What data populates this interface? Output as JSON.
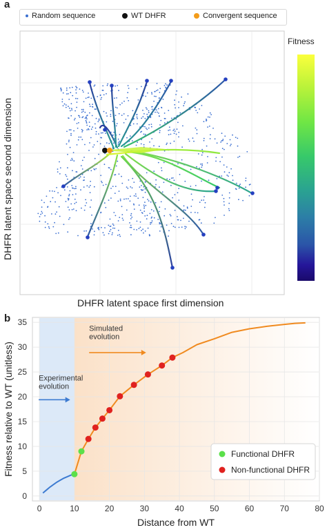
{
  "panel_a": {
    "letter": "a",
    "legend": [
      {
        "label": "Random sequence",
        "color": "#3a6fd1"
      },
      {
        "label": "WT DHFR",
        "color": "#111111"
      },
      {
        "label": "Convergent sequence",
        "color": "#f39c1a"
      }
    ],
    "colorbar_label": "Fitness",
    "xlabel": "DHFR latent space first dimension",
    "ylabel": "DHFR latent space second dimension"
  },
  "panel_b": {
    "letter": "b",
    "annotation_simulated": [
      "Simulated",
      "evolution"
    ],
    "annotation_experimental": [
      "Experimental",
      "evolution"
    ],
    "legend": [
      {
        "label": "Functional DHFR",
        "color": "#5be04a"
      },
      {
        "label": "Non-functional DHFR",
        "color": "#e0221f"
      }
    ]
  },
  "chart_data": [
    {
      "type": "scatter",
      "title": "",
      "xlabel": "DHFR latent space first dimension",
      "ylabel": "DHFR latent space second dimension",
      "series": [
        {
          "name": "Random sequence",
          "description_points": "scattered cloud"
        },
        {
          "name": "WT DHFR",
          "x": [
            0
          ],
          "y": [
            0
          ]
        },
        {
          "name": "Convergent sequence",
          "x": [
            0.05
          ],
          "y": [
            0
          ]
        }
      ],
      "colorbar": {
        "label": "Fitness"
      },
      "grid": true
    },
    {
      "type": "line",
      "title": "",
      "xlabel": "Distance from WT",
      "ylabel": "Fitness relative to WT (unitless)",
      "xlim": [
        -2,
        80
      ],
      "ylim": [
        -1,
        36
      ],
      "xticks": [
        0,
        10,
        20,
        30,
        40,
        50,
        60,
        70,
        80
      ],
      "yticks": [
        0,
        5,
        10,
        15,
        20,
        25,
        30,
        35
      ],
      "regions": [
        {
          "name": "Experimental evolution",
          "x": [
            0,
            10
          ],
          "color": "#dce9f8"
        },
        {
          "name": "Simulated evolution",
          "x": [
            10,
            80
          ],
          "color": "#fbe1c8"
        }
      ],
      "series": [
        {
          "name": "Experimental trajectory",
          "color": "#3d7bd1",
          "x": [
            1,
            2,
            3,
            4,
            5,
            6,
            7,
            8,
            9,
            10
          ],
          "y": [
            0.6,
            1.2,
            1.8,
            2.3,
            2.8,
            3.2,
            3.6,
            3.9,
            4.2,
            4.4
          ]
        },
        {
          "name": "Simulated trajectory",
          "color": "#f08a1f",
          "x": [
            10,
            12,
            14,
            16,
            18,
            20,
            23,
            27,
            31,
            35,
            38,
            41,
            45,
            50,
            55,
            60,
            65,
            70,
            73,
            76
          ],
          "y": [
            4.4,
            9.0,
            11.5,
            13.8,
            15.6,
            17.3,
            20.1,
            22.4,
            24.5,
            26.3,
            27.9,
            28.9,
            30.5,
            31.7,
            33.0,
            33.7,
            34.2,
            34.6,
            34.8,
            34.9
          ]
        },
        {
          "name": "Functional DHFR",
          "color": "#5be04a",
          "x": [
            10,
            12
          ],
          "y": [
            4.4,
            9.0
          ]
        },
        {
          "name": "Non-functional DHFR",
          "color": "#e0221f",
          "x": [
            14,
            16,
            18,
            20,
            23,
            27,
            31,
            35,
            38
          ],
          "y": [
            11.5,
            13.8,
            15.6,
            17.3,
            20.1,
            22.4,
            24.5,
            26.3,
            27.9
          ]
        }
      ],
      "legend_position": "bottom-right",
      "grid": true
    }
  ]
}
